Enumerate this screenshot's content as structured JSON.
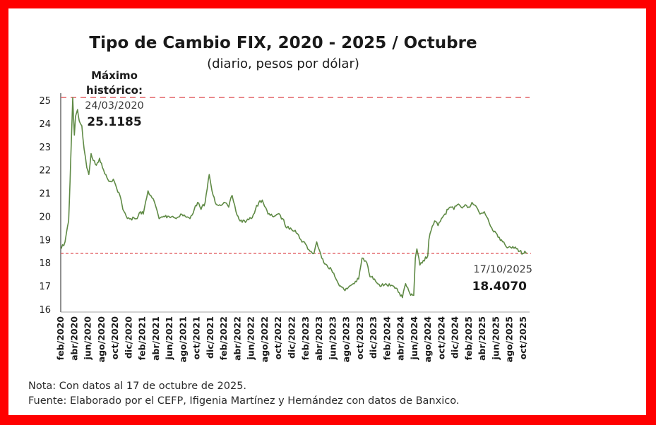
{
  "colors": {
    "frame": "#ff0000",
    "series": "#5f8a45",
    "reference": "#e0585c"
  },
  "chart_data": {
    "type": "line",
    "title": "Tipo de Cambio FIX, 2020 - 2025 / Octubre",
    "subtitle": "(diario, pesos por dólar)",
    "xlabel": "",
    "ylabel": "",
    "ylim": [
      16,
      25
    ],
    "yticks": [
      "25",
      "24",
      "23",
      "22",
      "21",
      "20",
      "19",
      "18",
      "17",
      "16"
    ],
    "xlim": [
      "2020-02",
      "2025-10"
    ],
    "grid": false,
    "x_tick_labels": [
      "feb/2020",
      "abr/2020",
      "jun/2020",
      "ago/2020",
      "oct/2020",
      "dic/2020",
      "feb/2021",
      "abr/2021",
      "jun/2021",
      "ago/2021",
      "oct/2021",
      "dic/2021",
      "feb/2022",
      "abr/2022",
      "jun/2022",
      "ago/2022",
      "oct/2022",
      "dic/2022",
      "feb/2023",
      "abr/2023",
      "jun/2023",
      "ago/2023",
      "oct/2023",
      "dic/2023",
      "feb/2024",
      "abr/2024",
      "jun/2024",
      "ago/2024",
      "oct/2024",
      "dic/2024",
      "feb/2025",
      "abr/2025",
      "jun/2025",
      "ago/2025",
      "oct/2025"
    ],
    "series": [
      {
        "x": [
          "2020-02-03",
          "2020-02-20",
          "2020-03-06",
          "2020-03-12",
          "2020-03-18",
          "2020-03-24",
          "2020-03-31",
          "2020-04-06",
          "2020-04-15",
          "2020-04-23",
          "2020-05-04",
          "2020-05-14",
          "2020-05-26",
          "2020-06-05",
          "2020-06-15",
          "2020-06-25",
          "2020-07-08",
          "2020-07-22",
          "2020-08-05",
          "2020-08-20",
          "2020-09-04",
          "2020-09-23",
          "2020-10-08",
          "2020-10-22",
          "2020-11-05",
          "2020-11-20",
          "2020-12-10",
          "2021-01-08",
          "2021-01-22",
          "2021-02-05",
          "2021-02-26",
          "2021-03-08",
          "2021-03-25",
          "2021-04-15",
          "2021-05-05",
          "2021-05-28",
          "2021-06-15",
          "2021-06-30",
          "2021-07-20",
          "2021-08-10",
          "2021-08-31",
          "2021-09-20",
          "2021-10-05",
          "2021-10-20",
          "2021-11-08",
          "2021-11-26",
          "2021-12-08",
          "2021-12-22",
          "2022-01-12",
          "2022-02-01",
          "2022-02-22",
          "2022-03-07",
          "2022-03-24",
          "2022-04-12",
          "2022-05-10",
          "2022-06-01",
          "2022-06-20",
          "2022-07-05",
          "2022-07-20",
          "2022-08-15",
          "2022-09-05",
          "2022-09-28",
          "2022-10-20",
          "2022-11-08",
          "2022-11-25",
          "2022-12-15",
          "2023-01-10",
          "2023-01-31",
          "2023-02-20",
          "2023-03-08",
          "2023-03-20",
          "2023-04-12",
          "2023-05-05",
          "2023-05-25",
          "2023-06-15",
          "2023-07-05",
          "2023-07-25",
          "2023-08-15",
          "2023-08-31",
          "2023-09-25",
          "2023-10-10",
          "2023-10-31",
          "2023-11-15",
          "2023-12-05",
          "2024-01-05",
          "2024-01-25",
          "2024-02-15",
          "2024-03-05",
          "2024-03-25",
          "2024-04-08",
          "2024-04-22",
          "2024-05-10",
          "2024-05-28",
          "2024-06-05",
          "2024-06-12",
          "2024-06-25",
          "2024-07-10",
          "2024-07-30",
          "2024-08-05",
          "2024-08-15",
          "2024-08-30",
          "2024-09-15",
          "2024-09-30",
          "2024-10-15",
          "2024-10-30",
          "2024-11-08",
          "2024-11-25",
          "2024-12-10",
          "2024-12-27",
          "2025-01-15",
          "2025-01-31",
          "2025-02-15",
          "2025-03-05",
          "2025-03-20",
          "2025-04-09",
          "2025-04-25",
          "2025-05-12",
          "2025-05-30",
          "2025-06-15",
          "2025-06-30",
          "2025-07-15",
          "2025-07-31",
          "2025-08-15",
          "2025-08-31",
          "2025-09-15",
          "2025-09-30",
          "2025-10-08",
          "2025-10-17"
        ],
        "values": [
          18.6,
          18.9,
          19.8,
          21.5,
          23.3,
          25.1185,
          23.5,
          24.3,
          24.6,
          24.1,
          23.9,
          22.9,
          22.1,
          21.8,
          22.7,
          22.4,
          22.2,
          22.5,
          22.1,
          21.8,
          21.5,
          21.6,
          21.2,
          20.9,
          20.3,
          20.0,
          19.9,
          19.9,
          20.2,
          20.1,
          21.1,
          20.9,
          20.6,
          19.9,
          20.0,
          20.0,
          20.0,
          19.9,
          20.1,
          20.0,
          19.9,
          20.3,
          20.6,
          20.3,
          20.6,
          21.8,
          21.1,
          20.6,
          20.5,
          20.6,
          20.4,
          20.9,
          20.2,
          19.8,
          19.8,
          19.9,
          20.3,
          20.6,
          20.7,
          20.1,
          20.0,
          20.1,
          19.9,
          19.5,
          19.5,
          19.4,
          19.0,
          18.8,
          18.5,
          18.4,
          18.9,
          18.2,
          17.9,
          17.7,
          17.3,
          17.0,
          16.8,
          17.0,
          17.1,
          17.3,
          18.2,
          18.0,
          17.4,
          17.3,
          17.0,
          17.1,
          17.0,
          16.9,
          16.7,
          16.5,
          17.1,
          16.7,
          16.6,
          18.2,
          18.6,
          17.9,
          18.1,
          18.3,
          19.0,
          19.4,
          19.8,
          19.6,
          19.9,
          20.1,
          20.3,
          20.4,
          20.3,
          20.5,
          20.4,
          20.5,
          20.4,
          20.6,
          20.4,
          20.1,
          20.2,
          19.9,
          19.5,
          19.3,
          19.1,
          18.9,
          18.7,
          18.7,
          18.7,
          18.6,
          18.5,
          18.4,
          18.5,
          18.407
        ]
      }
    ],
    "reference_lines": [
      {
        "y": 25.1185,
        "color": "#e0585c"
      },
      {
        "y": 18.407,
        "color": "#e0585c"
      }
    ],
    "annotations": {
      "max": {
        "line1": "Máximo",
        "line2": "histórico:",
        "date": "24/03/2020",
        "value": "25.1185"
      },
      "last": {
        "date": "17/10/2025",
        "value": "18.4070"
      }
    }
  },
  "notes": {
    "note": "Nota: Con datos al 17 de octubre de 2025.",
    "source": "Fuente: Elaborado por el CEFP, Ifigenia Martínez y Hernández con datos de Banxico."
  }
}
